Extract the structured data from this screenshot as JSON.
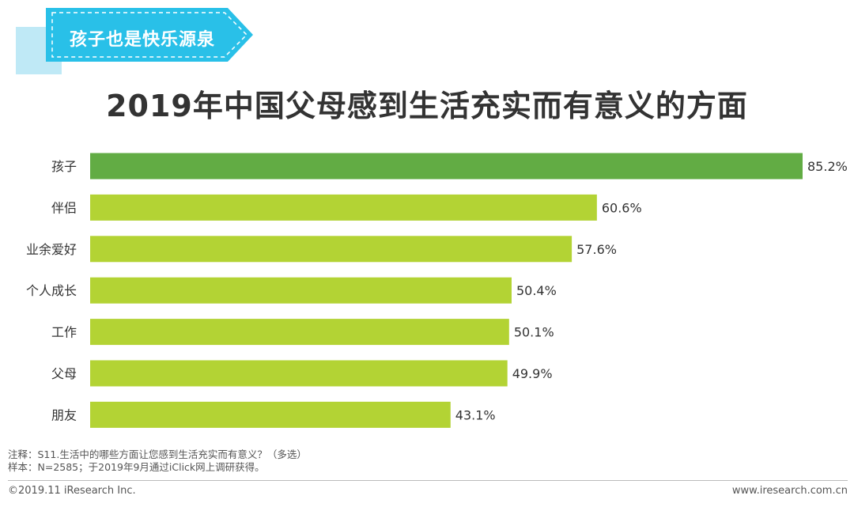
{
  "banner": {
    "label": "孩子也是快乐源泉"
  },
  "title": "2019年中国父母感到生活充实而有意义的方面",
  "chart_data": {
    "type": "bar",
    "orientation": "horizontal",
    "categories": [
      "孩子",
      "伴侣",
      "业余爱好",
      "个人成长",
      "工作",
      "父母",
      "朋友"
    ],
    "values": [
      85.2,
      60.6,
      57.6,
      50.4,
      50.1,
      49.9,
      43.1
    ],
    "value_labels": [
      "85.2%",
      "60.6%",
      "57.6%",
      "50.4%",
      "50.1%",
      "49.9%",
      "43.1%"
    ],
    "unit": "%",
    "xlim": [
      0,
      85.2
    ],
    "grid": false,
    "colors": {
      "highlight": "#62AC44",
      "default": "#B3D334"
    },
    "highlight_index": 0
  },
  "notes": {
    "line1": "注释：S11.生活中的哪些方面让您感到生活充实而有意义？（多选）",
    "line2": "样本：N=2585；于2019年9月通过iClick网上调研获得。"
  },
  "footer": {
    "copyright": "©2019.11 iResearch Inc.",
    "website": "www.iresearch.com.cn"
  }
}
